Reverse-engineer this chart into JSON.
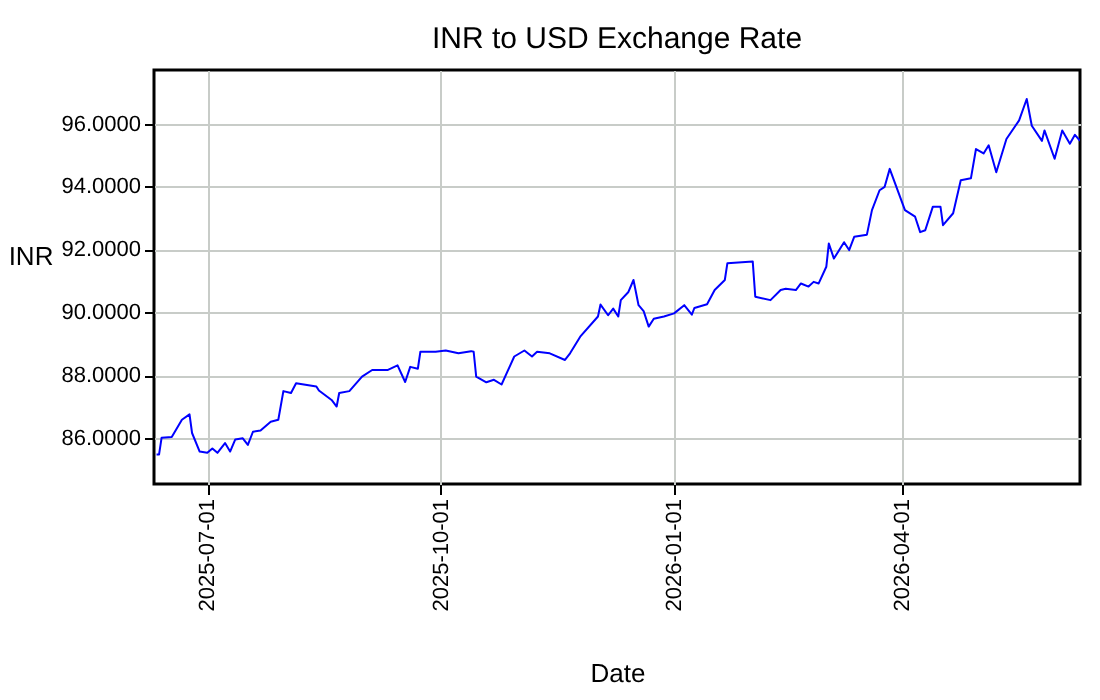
{
  "chart_data": {
    "type": "line",
    "title": "INR to USD Exchange Rate",
    "xlabel": "Date",
    "ylabel": "INR",
    "x": [
      "2025-06-11",
      "2025-06-12",
      "2025-06-13",
      "2025-06-17",
      "2025-06-21",
      "2025-06-24",
      "2025-06-25",
      "2025-06-28",
      "2025-07-01",
      "2025-07-03",
      "2025-07-05",
      "2025-07-08",
      "2025-07-10",
      "2025-07-12",
      "2025-07-15",
      "2025-07-17",
      "2025-07-19",
      "2025-07-22",
      "2025-07-26",
      "2025-07-29",
      "2025-07-31",
      "2025-08-03",
      "2025-08-05",
      "2025-08-13",
      "2025-08-14",
      "2025-08-19",
      "2025-08-21",
      "2025-08-22",
      "2025-08-26",
      "2025-08-31",
      "2025-09-04",
      "2025-09-10",
      "2025-09-14",
      "2025-09-17",
      "2025-09-19",
      "2025-09-22",
      "2025-09-23",
      "2025-09-29",
      "2025-10-03",
      "2025-10-08",
      "2025-10-13",
      "2025-10-14",
      "2025-10-15",
      "2025-10-19",
      "2025-10-22",
      "2025-10-25",
      "2025-10-30",
      "2025-11-03",
      "2025-11-06",
      "2025-11-08",
      "2025-11-13",
      "2025-11-19",
      "2025-11-21",
      "2025-11-25",
      "2025-12-02",
      "2025-12-03",
      "2025-12-06",
      "2025-12-08",
      "2025-12-10",
      "2025-12-11",
      "2025-12-14",
      "2025-12-16",
      "2025-12-18",
      "2025-12-20",
      "2025-12-22",
      "2025-12-24",
      "2025-12-28",
      "2026-01-01",
      "2026-01-05",
      "2026-01-08",
      "2026-01-09",
      "2026-01-14",
      "2026-01-17",
      "2026-01-21",
      "2026-01-22",
      "2026-02-01",
      "2026-02-02",
      "2026-02-08",
      "2026-02-12",
      "2026-02-14",
      "2026-02-18",
      "2026-02-20",
      "2026-02-23",
      "2026-02-25",
      "2026-02-27",
      "2026-03-02",
      "2026-03-03",
      "2026-03-05",
      "2026-03-09",
      "2026-03-11",
      "2026-03-13",
      "2026-03-18",
      "2026-03-20",
      "2026-03-23",
      "2026-03-25",
      "2026-03-27",
      "2026-04-02",
      "2026-04-06",
      "2026-04-08",
      "2026-04-10",
      "2026-04-13",
      "2026-04-16",
      "2026-04-17",
      "2026-04-21",
      "2026-04-24",
      "2026-04-28",
      "2026-04-30",
      "2026-05-03",
      "2026-05-05",
      "2026-05-08",
      "2026-05-12",
      "2026-05-17",
      "2026-05-20",
      "2026-05-22",
      "2026-05-26",
      "2026-05-27",
      "2026-05-31",
      "2026-06-03",
      "2026-06-06",
      "2026-06-08",
      "2026-06-10"
    ],
    "series": [
      {
        "color": "#0000ff",
        "values": [
          85.49,
          85.49,
          86.02,
          86.04,
          86.59,
          86.76,
          86.17,
          85.58,
          85.54,
          85.68,
          85.54,
          85.85,
          85.58,
          85.96,
          86.0,
          85.79,
          86.21,
          86.25,
          86.53,
          86.59,
          87.5,
          87.44,
          87.75,
          87.65,
          87.52,
          87.22,
          87.01,
          87.44,
          87.5,
          87.96,
          88.17,
          88.17,
          88.32,
          87.79,
          88.27,
          88.21,
          88.75,
          88.75,
          88.79,
          88.7,
          88.77,
          88.75,
          87.96,
          87.78,
          87.86,
          87.71,
          88.6,
          88.79,
          88.6,
          88.75,
          88.7,
          88.49,
          88.7,
          89.23,
          89.87,
          90.25,
          89.91,
          90.12,
          89.87,
          90.39,
          90.65,
          91.03,
          90.23,
          90.04,
          89.55,
          89.8,
          89.87,
          89.97,
          90.23,
          89.93,
          90.14,
          90.26,
          90.71,
          91.03,
          91.56,
          91.62,
          90.5,
          90.39,
          90.71,
          90.75,
          90.71,
          90.92,
          90.82,
          90.97,
          90.92,
          91.45,
          92.19,
          91.71,
          92.23,
          91.98,
          92.4,
          92.47,
          93.25,
          93.88,
          93.99,
          94.56,
          93.25,
          93.04,
          92.55,
          92.61,
          93.36,
          93.36,
          92.77,
          93.15,
          94.2,
          94.26,
          95.19,
          95.05,
          95.31,
          94.45,
          95.51,
          96.1,
          96.78,
          95.93,
          95.45,
          95.78,
          94.88,
          95.78,
          95.36,
          95.64,
          95.45
        ]
      }
    ],
    "xlim": [
      "2025-06-10",
      "2026-06-10"
    ],
    "xticks": [
      "2025-07-01",
      "2025-10-01",
      "2026-01-01",
      "2026-04-01"
    ],
    "ylim": [
      84.55,
      97.7
    ],
    "yticks": [
      {
        "value": 86,
        "label": "86.0000"
      },
      {
        "value": 88,
        "label": "88.0000"
      },
      {
        "value": 90,
        "label": "90.0000"
      },
      {
        "value": 92,
        "label": "92.0000"
      },
      {
        "value": 94,
        "label": "94.0000"
      },
      {
        "value": 96,
        "label": "96.0000"
      }
    ],
    "grid": true,
    "marker": "none",
    "line_style": "solid"
  }
}
